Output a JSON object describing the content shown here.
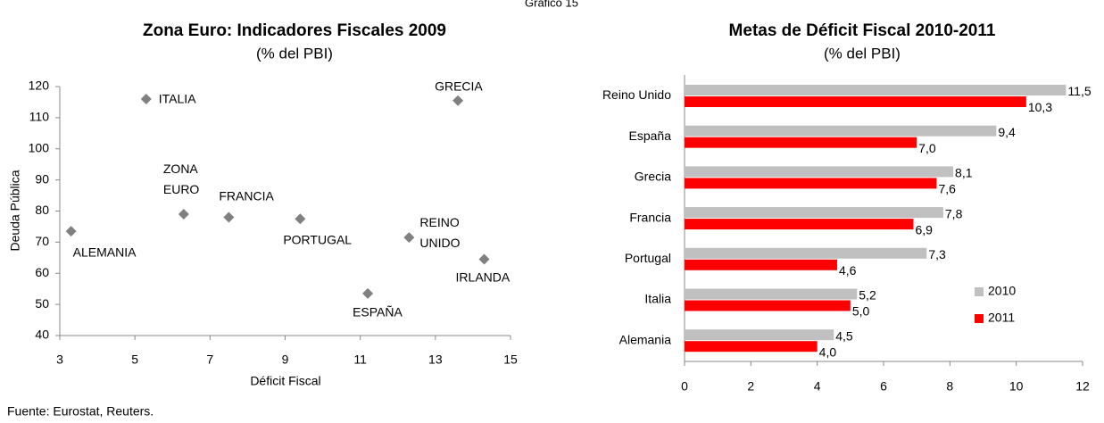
{
  "header": "Gráfico 15",
  "source": "Fuente: Eurostat, Reuters.",
  "chart_data": [
    {
      "type": "scatter",
      "title": "Zona Euro: Indicadores Fiscales 2009",
      "subtitle": "(% del PBI)",
      "x_label": "Déficit Fiscal",
      "y_label": "Deuda Pública",
      "color": "#808080",
      "point_labels": [
        "ITALIA",
        "GRECIA",
        "ZONA\nEURO",
        "FRANCIA",
        "PORTUGAL",
        "ALEMANIA",
        "REINO\nUNIDO",
        "IRLANDA",
        "ESPAÑA"
      ],
      "x": [
        5.3,
        13.6,
        6.3,
        7.5,
        9.4,
        3.3,
        12.3,
        14.3,
        11.2
      ],
      "values": [
        116,
        115.5,
        79,
        78,
        77.5,
        73.5,
        71.5,
        64.5,
        53.5
      ],
      "xlim": [
        3,
        15
      ],
      "xticks": [
        3,
        5,
        7,
        9,
        11,
        13,
        15
      ],
      "ylim": [
        40,
        120
      ],
      "yticks": [
        40,
        50,
        60,
        70,
        80,
        90,
        100,
        110,
        120
      ]
    },
    {
      "type": "hbar",
      "title": "Metas de Déficit Fiscal 2010-2011",
      "subtitle": "(% del PBI)",
      "categories": [
        "Reino Unido",
        "España",
        "Grecia",
        "Francia",
        "Portugal",
        "Italia",
        "Alemania"
      ],
      "series": [
        {
          "name": "2010",
          "color": "#c0c0c0",
          "values": [
            11.5,
            9.4,
            8.1,
            7.8,
            7.3,
            5.2,
            4.5
          ],
          "value_labels": [
            "11,5",
            "9,4",
            "8,1",
            "7,8",
            "7,3",
            "5,2",
            "4,5"
          ]
        },
        {
          "name": "2011",
          "color": "#ff0000",
          "values": [
            10.3,
            7.0,
            7.6,
            6.9,
            4.6,
            5.0,
            4.0
          ],
          "value_labels": [
            "10,3",
            "7,0",
            "7,6",
            "6,9",
            "4,6",
            "5,0",
            "4,0"
          ]
        }
      ],
      "xlim": [
        0,
        12
      ],
      "xticks": [
        0,
        2,
        4,
        6,
        8,
        10,
        12
      ],
      "legend": "right"
    }
  ]
}
